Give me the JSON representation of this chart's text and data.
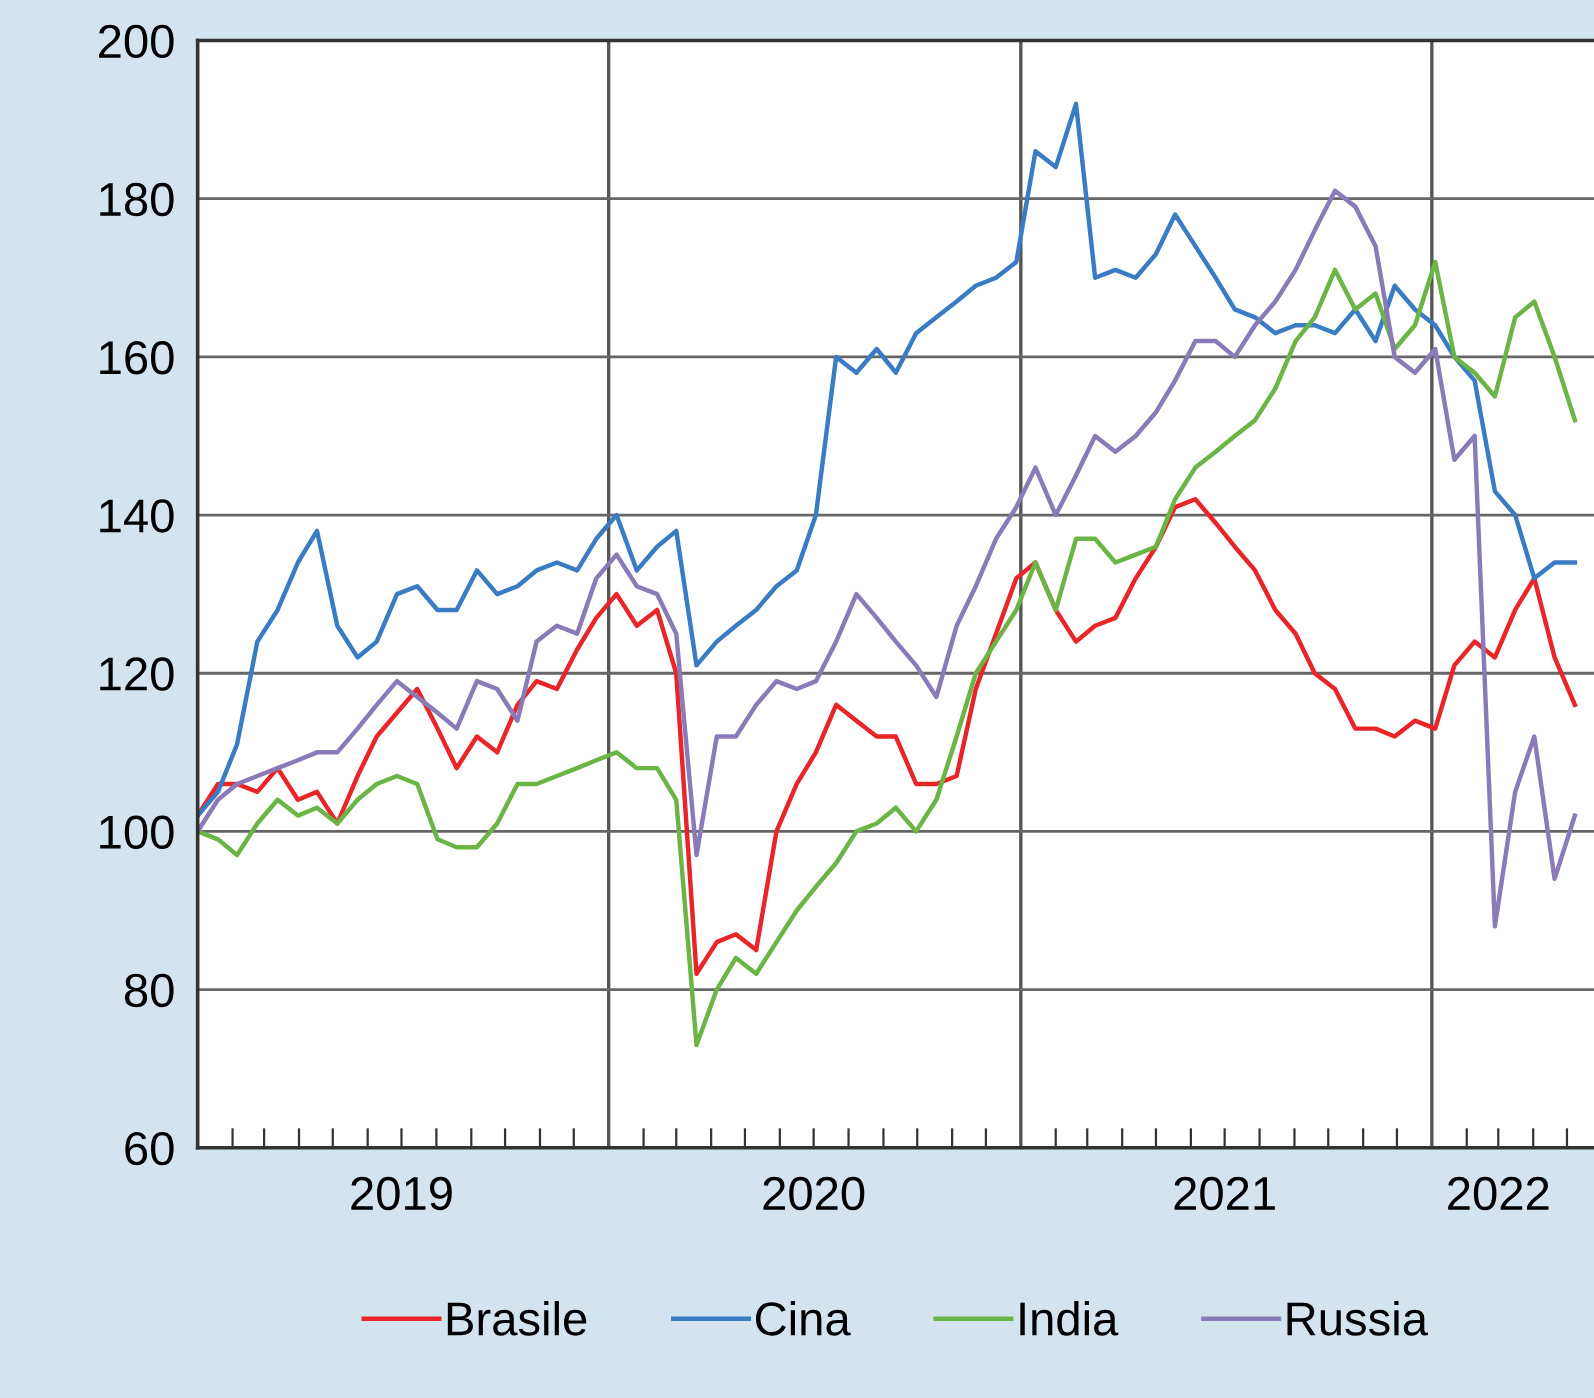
{
  "chart_data": {
    "type": "line",
    "x": [
      "2019-01-01",
      "2019-01-19",
      "2019-02-05",
      "2019-02-23",
      "2019-03-13",
      "2019-03-31",
      "2019-04-17",
      "2019-05-05",
      "2019-05-23",
      "2019-06-09",
      "2019-06-27",
      "2019-07-15",
      "2019-08-02",
      "2019-08-19",
      "2019-09-06",
      "2019-09-24",
      "2019-10-12",
      "2019-10-29",
      "2019-11-16",
      "2019-12-04",
      "2019-12-21",
      "2020-01-08",
      "2020-01-26",
      "2020-02-13",
      "2020-03-01",
      "2020-03-19",
      "2020-04-06",
      "2020-04-23",
      "2020-05-11",
      "2020-05-29",
      "2020-06-16",
      "2020-07-03",
      "2020-07-21",
      "2020-08-08",
      "2020-08-26",
      "2020-09-12",
      "2020-09-30",
      "2020-10-18",
      "2020-11-05",
      "2020-11-22",
      "2020-12-10",
      "2020-12-28",
      "2021-01-14",
      "2021-02-01",
      "2021-02-19",
      "2021-03-08",
      "2021-03-26",
      "2021-04-13",
      "2021-05-01",
      "2021-05-18",
      "2021-06-05",
      "2021-06-23",
      "2021-07-10",
      "2021-07-28",
      "2021-08-15",
      "2021-09-02",
      "2021-09-19",
      "2021-10-07",
      "2021-10-25",
      "2021-11-12",
      "2021-11-29",
      "2021-12-17",
      "2022-01-04",
      "2022-01-21",
      "2022-02-08",
      "2022-02-26",
      "2022-03-16",
      "2022-04-02",
      "2022-04-20",
      "2022-05-08"
    ],
    "series": [
      {
        "name": "Brasile",
        "color": "#e8262a",
        "values": [
          102,
          106,
          106,
          105,
          108,
          104,
          105,
          101,
          107,
          112,
          115,
          118,
          113,
          108,
          112,
          110,
          116,
          119,
          118,
          123,
          127,
          130,
          126,
          128,
          120,
          82,
          86,
          87,
          85,
          100,
          106,
          110,
          116,
          114,
          112,
          112,
          106,
          106,
          107,
          118,
          125,
          132,
          134,
          128,
          124,
          126,
          127,
          132,
          136,
          141,
          142,
          139,
          136,
          133,
          128,
          125,
          120,
          118,
          113,
          113,
          112,
          114,
          113,
          121,
          124,
          122,
          128,
          132,
          122,
          116
        ]
      },
      {
        "name": "Cina",
        "color": "#3a7cc4",
        "values": [
          102,
          105,
          111,
          124,
          128,
          134,
          138,
          126,
          122,
          124,
          130,
          131,
          128,
          128,
          133,
          130,
          131,
          133,
          134,
          133,
          137,
          140,
          133,
          136,
          138,
          121,
          124,
          126,
          128,
          131,
          133,
          140,
          160,
          158,
          161,
          158,
          163,
          165,
          167,
          169,
          170,
          172,
          186,
          184,
          192,
          170,
          171,
          170,
          173,
          178,
          174,
          170,
          166,
          165,
          163,
          164,
          164,
          163,
          166,
          162,
          169,
          166,
          164,
          160,
          157,
          143,
          140,
          132,
          134,
          134
        ]
      },
      {
        "name": "India",
        "color": "#6ab545",
        "values": [
          100,
          99,
          97,
          101,
          104,
          102,
          103,
          101,
          104,
          106,
          107,
          106,
          99,
          98,
          98,
          101,
          106,
          106,
          107,
          108,
          109,
          110,
          108,
          108,
          104,
          73,
          80,
          84,
          82,
          86,
          90,
          93,
          96,
          100,
          101,
          103,
          100,
          104,
          112,
          120,
          124,
          128,
          134,
          128,
          137,
          137,
          134,
          135,
          136,
          142,
          146,
          148,
          150,
          152,
          156,
          162,
          165,
          171,
          166,
          168,
          161,
          164,
          172,
          160,
          158,
          155,
          165,
          167,
          160,
          152
        ]
      },
      {
        "name": "Russia",
        "color": "#8a7bb8",
        "values": [
          100,
          104,
          106,
          107,
          108,
          109,
          110,
          110,
          113,
          116,
          119,
          117,
          115,
          113,
          119,
          118,
          114,
          124,
          126,
          125,
          132,
          135,
          131,
          130,
          125,
          97,
          112,
          112,
          116,
          119,
          118,
          119,
          124,
          130,
          127,
          124,
          121,
          117,
          126,
          131,
          137,
          141,
          146,
          140,
          145,
          150,
          148,
          150,
          153,
          157,
          162,
          162,
          160,
          164,
          167,
          171,
          176,
          181,
          179,
          174,
          160,
          158,
          161,
          147,
          150,
          88,
          105,
          112,
          94,
          102
        ]
      }
    ],
    "xlim": [
      "2019-01-01",
      "2022-05-25"
    ],
    "xticks": [
      {
        "value": "2019-02-01",
        "label": null
      },
      {
        "value": "2019-03-01",
        "label": null
      },
      {
        "value": "2019-04-01",
        "label": null
      },
      {
        "value": "2019-05-01",
        "label": null
      },
      {
        "value": "2019-06-01",
        "label": null
      },
      {
        "value": "2019-07-01",
        "label": "2019"
      },
      {
        "value": "2019-08-01",
        "label": null
      },
      {
        "value": "2019-09-01",
        "label": null
      },
      {
        "value": "2019-10-01",
        "label": null
      },
      {
        "value": "2019-11-01",
        "label": null
      },
      {
        "value": "2019-12-01",
        "label": null
      },
      {
        "value": "2020-02-01",
        "label": null
      },
      {
        "value": "2020-03-01",
        "label": null
      },
      {
        "value": "2020-04-01",
        "label": null
      },
      {
        "value": "2020-05-01",
        "label": null
      },
      {
        "value": "2020-06-01",
        "label": null
      },
      {
        "value": "2020-07-01",
        "label": "2020"
      },
      {
        "value": "2020-08-01",
        "label": null
      },
      {
        "value": "2020-09-01",
        "label": null
      },
      {
        "value": "2020-10-01",
        "label": null
      },
      {
        "value": "2020-11-01",
        "label": null
      },
      {
        "value": "2020-12-01",
        "label": null
      },
      {
        "value": "2021-02-01",
        "label": null
      },
      {
        "value": "2021-03-01",
        "label": null
      },
      {
        "value": "2021-04-01",
        "label": null
      },
      {
        "value": "2021-05-01",
        "label": null
      },
      {
        "value": "2021-06-01",
        "label": null
      },
      {
        "value": "2021-07-01",
        "label": "2021"
      },
      {
        "value": "2021-08-01",
        "label": null
      },
      {
        "value": "2021-09-01",
        "label": null
      },
      {
        "value": "2021-10-01",
        "label": null
      },
      {
        "value": "2021-11-01",
        "label": null
      },
      {
        "value": "2021-12-01",
        "label": null
      },
      {
        "value": "2022-02-01",
        "label": null
      },
      {
        "value": "2022-03-01",
        "label": "2022"
      },
      {
        "value": "2022-04-01",
        "label": null
      },
      {
        "value": "2022-05-01",
        "label": null
      }
    ],
    "ylim": [
      60,
      200
    ],
    "yticks": [
      60,
      80,
      100,
      120,
      140,
      160,
      180,
      200
    ],
    "grid": "y",
    "ref_lines": [
      {
        "axis": "x",
        "value": "2020-01-01",
        "color": "#555555"
      },
      {
        "axis": "x",
        "value": "2021-01-01",
        "color": "#555555"
      },
      {
        "axis": "x",
        "value": "2022-01-01",
        "color": "#555555"
      }
    ],
    "legend": "bottom",
    "marker": "none",
    "line_style": "solid"
  }
}
